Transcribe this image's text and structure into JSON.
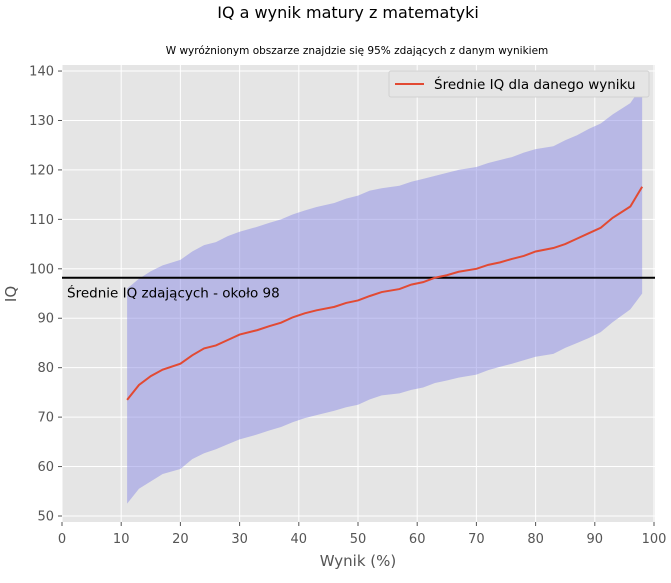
{
  "chart_data": {
    "type": "line",
    "title": "IQ a wynik matury z matematyki",
    "subtitle": "W wyróżnionym obszarze znajdzie się 95% zdających z danym wynikiem",
    "xlabel": "Wynik (%)",
    "ylabel": "IQ",
    "xlim": [
      0,
      100
    ],
    "ylim": [
      49,
      141.5
    ],
    "xticks": [
      0,
      10,
      20,
      30,
      40,
      50,
      60,
      70,
      80,
      90,
      100
    ],
    "yticks": [
      50,
      60,
      70,
      80,
      90,
      100,
      110,
      120,
      130,
      140
    ],
    "grid": true,
    "legend": {
      "placement": "top-right",
      "entries": [
        "Średnie IQ dla danego wyniku"
      ]
    },
    "x": [
      11,
      13,
      15,
      17,
      20,
      22,
      24,
      26,
      28,
      30,
      33,
      35,
      37,
      39,
      41,
      43,
      46,
      48,
      50,
      52,
      54,
      57,
      59,
      61,
      63,
      65,
      67,
      70,
      72,
      74,
      76,
      78,
      80,
      83,
      85,
      87,
      89,
      91,
      93,
      96,
      98
    ],
    "series": [
      {
        "name": "Średnie IQ dla danego wyniku",
        "color": "#E24A33",
        "values": [
          73.5,
          76.5,
          78.3,
          79.6,
          80.8,
          82.5,
          83.9,
          84.5,
          85.6,
          86.7,
          87.6,
          88.4,
          89.1,
          90.2,
          91,
          91.6,
          92.3,
          93.1,
          93.6,
          94.5,
          95.3,
          95.9,
          96.8,
          97.3,
          98.2,
          98.7,
          99.4,
          100,
          100.8,
          101.3,
          102,
          102.6,
          103.5,
          104.2,
          105,
          106.1,
          107.2,
          108.3,
          110.3,
          112.6,
          116.6
        ]
      }
    ],
    "band": {
      "color": "#8C8CE6",
      "upper": [
        96,
        98,
        99.5,
        100.7,
        101.8,
        103.5,
        104.8,
        105.4,
        106.6,
        107.5,
        108.5,
        109.3,
        110,
        111,
        111.8,
        112.5,
        113.3,
        114.2,
        114.8,
        115.8,
        116.3,
        116.8,
        117.6,
        118.2,
        118.8,
        119.4,
        120,
        120.6,
        121.4,
        122,
        122.6,
        123.5,
        124.2,
        124.8,
        126,
        127,
        128.3,
        129.4,
        131.2,
        133.5,
        137
      ],
      "lower": [
        52.5,
        55.5,
        57,
        58.5,
        59.5,
        61.5,
        62.7,
        63.5,
        64.5,
        65.5,
        66.5,
        67.3,
        68,
        69,
        69.8,
        70.4,
        71.3,
        72,
        72.5,
        73.6,
        74.4,
        74.8,
        75.5,
        76,
        76.9,
        77.4,
        78,
        78.6,
        79.5,
        80.2,
        80.8,
        81.5,
        82.2,
        82.8,
        84,
        85,
        86,
        87.2,
        89.2,
        91.8,
        95
      ]
    },
    "hline": {
      "value": 98.2,
      "label": "Średnie IQ zdających - około 98",
      "color": "#000000"
    }
  }
}
